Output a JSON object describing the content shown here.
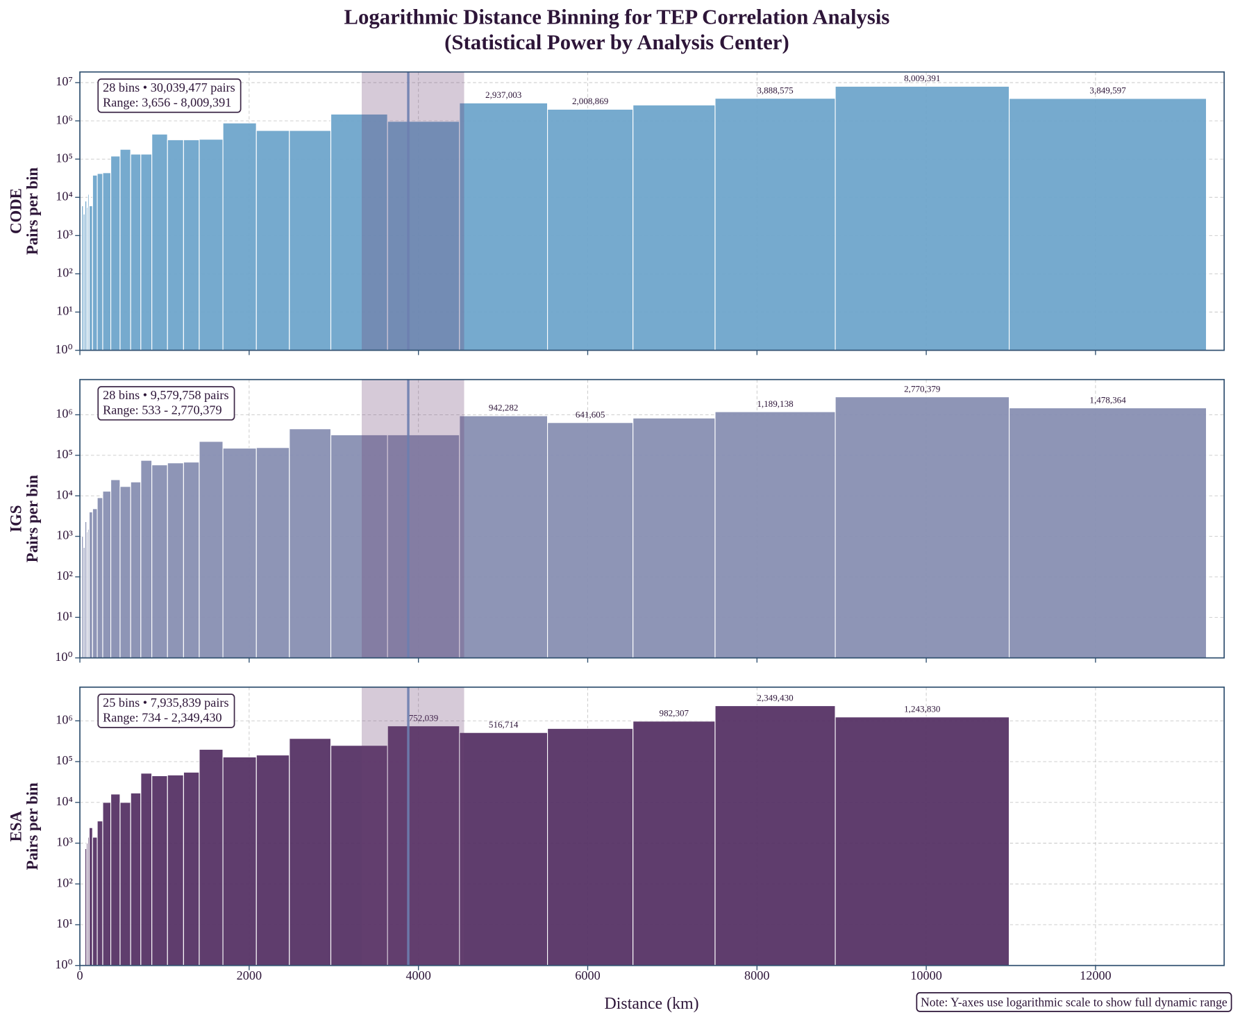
{
  "figure": {
    "title": "Logarithmic Distance Binning for TEP Correlation Analysis",
    "subtitle": "(Statistical Power by Analysis Center)",
    "note": "Note: Y-axes use logarithmic scale to show full dynamic range"
  },
  "chart_data": [
    {
      "type": "histogram",
      "name": "CODE",
      "ylabel": "Pairs per bin",
      "color": "#6fa6cc",
      "bins": [
        20,
        40,
        60,
        80,
        95,
        110,
        150,
        205,
        270,
        365,
        475,
        600,
        720,
        850,
        1035,
        1225,
        1410,
        1690,
        2085,
        2475,
        2965,
        3635,
        4485,
        5525,
        6535,
        7505,
        8925,
        10980,
        13310
      ],
      "values": [
        6000,
        3656,
        8000,
        5500,
        12000,
        6000,
        38000,
        42000,
        44000,
        120000,
        180000,
        135000,
        135000,
        450000,
        320000,
        320000,
        330000,
        880000,
        560000,
        560000,
        1500000,
        970000,
        2937003,
        2008869,
        2600000,
        3888575,
        8009391,
        3849597
      ],
      "value_labels": [
        null,
        null,
        null,
        null,
        null,
        null,
        null,
        null,
        null,
        null,
        null,
        null,
        null,
        null,
        null,
        null,
        null,
        null,
        null,
        null,
        null,
        null,
        "2,937,003",
        "2,008,869",
        null,
        "3,888,575",
        "8,009,391",
        "3,849,597"
      ],
      "annotation": [
        "28 bins • 30,039,477 pairs",
        "Range: 3,656 - 8,009,391"
      ],
      "span": [
        3330,
        4540
      ],
      "vline": 3880,
      "xlim": [
        0,
        13520
      ],
      "xticks": [
        0,
        2000,
        4000,
        6000,
        8000,
        10000,
        12000
      ],
      "ylim": [
        1,
        19000000
      ],
      "log_y": true,
      "grid": true,
      "yticks": [
        {
          "value": 1,
          "label": "10⁰"
        },
        {
          "value": 10,
          "label": "10¹"
        },
        {
          "value": 100,
          "label": "10²"
        },
        {
          "value": 1000,
          "label": "10³"
        },
        {
          "value": 10000,
          "label": "10⁴"
        },
        {
          "value": 100000,
          "label": "10⁵"
        },
        {
          "value": 1000000,
          "label": "10⁶"
        },
        {
          "value": 10000000,
          "label": "10⁷"
        }
      ]
    },
    {
      "type": "histogram",
      "name": "IGS",
      "ylabel": "Pairs per bin",
      "color": "#8890b3",
      "bins": [
        20,
        40,
        60,
        80,
        95,
        110,
        150,
        205,
        270,
        365,
        475,
        600,
        720,
        850,
        1035,
        1225,
        1410,
        1690,
        2085,
        2475,
        2965,
        3635,
        4485,
        5525,
        6535,
        7505,
        8925,
        10980,
        13310
      ],
      "values": [
        1000,
        533,
        2300,
        1300,
        1500,
        4000,
        4800,
        9000,
        13000,
        25000,
        17000,
        22000,
        75000,
        58000,
        65000,
        68000,
        220000,
        150000,
        155000,
        450000,
        320000,
        320000,
        942282,
        641605,
        830000,
        1189138,
        2770379,
        1478364
      ],
      "value_labels": [
        null,
        null,
        null,
        null,
        null,
        null,
        null,
        null,
        null,
        null,
        null,
        null,
        null,
        null,
        null,
        null,
        null,
        null,
        null,
        null,
        null,
        null,
        "942,282",
        "641,605",
        null,
        "1,189,138",
        "2,770,379",
        "1,478,364"
      ],
      "annotation": [
        "28 bins • 9,579,758 pairs",
        "Range: 533 - 2,770,379"
      ],
      "span": [
        3330,
        4540
      ],
      "vline": 3880,
      "xlim": [
        0,
        13520
      ],
      "xticks": [
        0,
        2000,
        4000,
        6000,
        8000,
        10000,
        12000
      ],
      "ylim": [
        1,
        7400000
      ],
      "log_y": true,
      "grid": true,
      "yticks": [
        {
          "value": 1,
          "label": "10⁰"
        },
        {
          "value": 10,
          "label": "10¹"
        },
        {
          "value": 100,
          "label": "10²"
        },
        {
          "value": 1000,
          "label": "10³"
        },
        {
          "value": 10000,
          "label": "10⁴"
        },
        {
          "value": 100000,
          "label": "10⁵"
        },
        {
          "value": 1000000,
          "label": "10⁶"
        }
      ]
    },
    {
      "type": "histogram",
      "name": "ESA",
      "ylabel": "Pairs per bin",
      "color": "#573366",
      "bins": [
        60,
        80,
        95,
        110,
        150,
        205,
        270,
        365,
        475,
        600,
        720,
        850,
        1035,
        1225,
        1410,
        1690,
        2085,
        2475,
        2965,
        3635,
        4485,
        5525,
        6535,
        7505,
        8925,
        10980
      ],
      "values": [
        734,
        1000,
        1400,
        2400,
        1400,
        3500,
        10000,
        16000,
        10000,
        17000,
        52000,
        45000,
        47000,
        55000,
        200000,
        130000,
        145000,
        370000,
        250000,
        752039,
        516714,
        650000,
        982307,
        2349430,
        1243830
      ],
      "value_labels": [
        null,
        null,
        null,
        null,
        null,
        null,
        null,
        null,
        null,
        null,
        null,
        null,
        null,
        null,
        null,
        null,
        null,
        null,
        null,
        "752,039",
        "516,714",
        null,
        "982,307",
        "2,349,430",
        "1,243,830"
      ],
      "annotation": [
        "25 bins • 7,935,839 pairs",
        "Range: 734 - 2,349,430"
      ],
      "span": [
        3330,
        4540
      ],
      "vline": 3880,
      "xlim": [
        0,
        13520
      ],
      "xticks": [
        0,
        2000,
        4000,
        6000,
        8000,
        10000,
        12000
      ],
      "xlabel": "Distance (km)",
      "ylim": [
        1,
        6700000
      ],
      "log_y": true,
      "grid": true,
      "yticks": [
        {
          "value": 1,
          "label": "10⁰"
        },
        {
          "value": 10,
          "label": "10¹"
        },
        {
          "value": 100,
          "label": "10²"
        },
        {
          "value": 1000,
          "label": "10³"
        },
        {
          "value": 10000,
          "label": "10⁴"
        },
        {
          "value": 100000,
          "label": "10⁵"
        },
        {
          "value": 1000000,
          "label": "10⁶"
        }
      ]
    }
  ]
}
